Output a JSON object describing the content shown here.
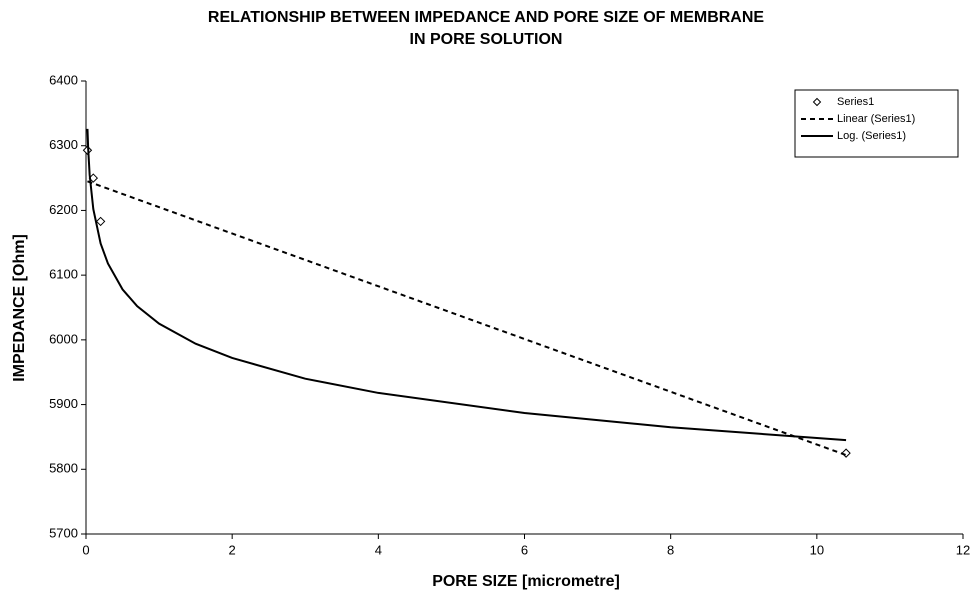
{
  "chart_data": {
    "type": "scatter",
    "title": [
      "RELATIONSHIP BETWEEN IMPEDANCE AND PORE SIZE OF MEMBRANE",
      "IN PORE SOLUTION"
    ],
    "x_label": "PORE SIZE [micrometre]",
    "y_label": "IMPEDANCE [Ohm]",
    "xlim": [
      0,
      12
    ],
    "xticks": [
      0,
      2,
      4,
      6,
      8,
      10,
      12
    ],
    "ylim": [
      5700,
      6400
    ],
    "yticks": [
      5700,
      5800,
      5900,
      6000,
      6100,
      6200,
      6300,
      6400
    ],
    "grid": false,
    "legend": "top-right",
    "series": [
      {
        "name": "Series1",
        "color": "#000000",
        "marker": "diamond",
        "line": "none",
        "x": [
          0.02,
          0.1,
          0.2,
          10.4
        ],
        "values": [
          6293,
          6250,
          6183,
          5825
        ]
      },
      {
        "name": "Linear (Series1)",
        "color": "#000000",
        "marker": "none",
        "line": "dashed",
        "x": [
          0.02,
          10.4
        ],
        "values": [
          6245,
          5822
        ]
      },
      {
        "name": "Log. (Series1)",
        "color": "#000000",
        "marker": "none",
        "line": "solid",
        "x": [
          0.02,
          0.03,
          0.05,
          0.1,
          0.2,
          0.3,
          0.5,
          0.7,
          1,
          1.5,
          2,
          3,
          4,
          6,
          8,
          10.4
        ],
        "values": [
          6326,
          6295,
          6255,
          6202,
          6149,
          6118,
          6078,
          6052,
          6025,
          5994,
          5972,
          5940,
          5918,
          5887,
          5865,
          5845
        ]
      }
    ]
  }
}
